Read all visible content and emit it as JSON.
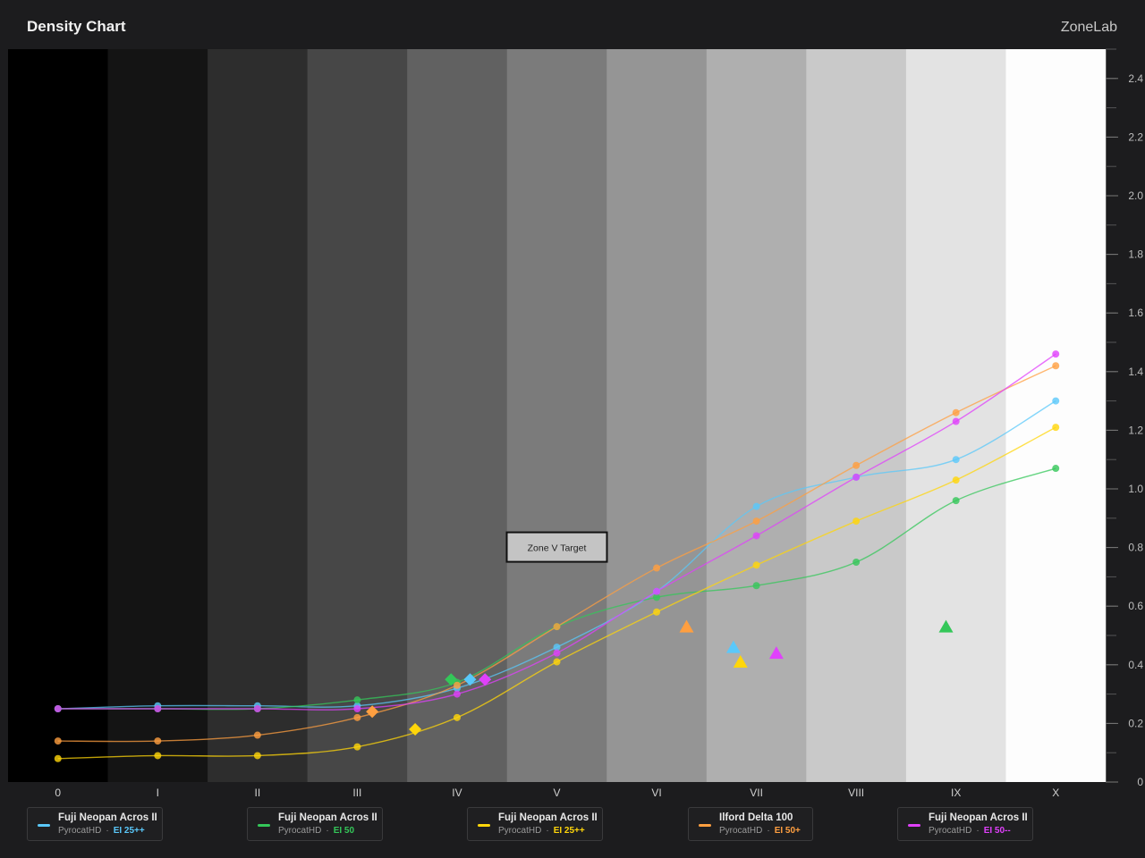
{
  "header": {
    "title": "Density Chart",
    "brand": "ZoneLab"
  },
  "annotation": {
    "label": "Zone V Target",
    "zone": 5,
    "density": 0.8
  },
  "chart_data": {
    "type": "line",
    "x_categories": [
      "0",
      "I",
      "II",
      "III",
      "IV",
      "V",
      "VI",
      "VII",
      "VIII",
      "IX",
      "X"
    ],
    "zone_shades": [
      "#000000",
      "#141414",
      "#2d2d2d",
      "#474747",
      "#616161",
      "#7b7b7b",
      "#959595",
      "#afafaf",
      "#c9c9c9",
      "#e3e3e3",
      "#fdfdfd"
    ],
    "ylim": [
      0,
      2.5
    ],
    "yticks": [
      0,
      0.2,
      0.4,
      0.6,
      0.8,
      1.0,
      1.2,
      1.4,
      1.6,
      1.8,
      2.0,
      2.2,
      2.4
    ],
    "ytick_labels": [
      "0",
      "0.2",
      "0.4",
      "0.6",
      "0.8",
      "1.0",
      "1.2",
      "1.4",
      "1.6",
      "1.8",
      "2.0",
      "2.2",
      "2.4"
    ],
    "series": [
      {
        "name": "Fuji Neopan Acros II",
        "developer": "PyrocatHD",
        "ei": "EI 25++",
        "color": "#5ac8fa",
        "values": [
          0.25,
          0.26,
          0.26,
          0.26,
          0.32,
          0.46,
          0.65,
          0.94,
          1.04,
          1.1,
          1.3
        ],
        "diamond": {
          "x": 4.13,
          "y": 0.35
        },
        "triangle": {
          "x": 6.77,
          "y": 0.46
        }
      },
      {
        "name": "Fuji Neopan Acros II",
        "developer": "PyrocatHD",
        "ei": "EI 50",
        "color": "#34c759",
        "values": [
          0.25,
          0.25,
          0.25,
          0.28,
          0.34,
          0.53,
          0.63,
          0.67,
          0.75,
          0.96,
          1.07
        ],
        "diamond": {
          "x": 3.94,
          "y": 0.35
        },
        "triangle": {
          "x": 8.9,
          "y": 0.53
        }
      },
      {
        "name": "Fuji Neopan Acros II",
        "developer": "PyrocatHD",
        "ei": "EI 25++",
        "color": "#ffd60a",
        "values": [
          0.08,
          0.09,
          0.09,
          0.12,
          0.22,
          0.41,
          0.58,
          0.74,
          0.89,
          1.03,
          1.21
        ],
        "diamond": {
          "x": 3.58,
          "y": 0.18
        },
        "triangle": {
          "x": 6.84,
          "y": 0.41
        }
      },
      {
        "name": "Ilford Delta 100",
        "developer": "PyrocatHD",
        "ei": "EI 50+",
        "color": "#ff9f40",
        "values": [
          0.14,
          0.14,
          0.16,
          0.22,
          0.33,
          0.53,
          0.73,
          0.89,
          1.08,
          1.26,
          1.42
        ],
        "diamond": {
          "x": 3.15,
          "y": 0.24
        },
        "triangle": {
          "x": 6.3,
          "y": 0.53
        }
      },
      {
        "name": "Fuji Neopan Acros II",
        "developer": "PyrocatHD",
        "ei": "EI 50--",
        "color": "#e040fb",
        "values": [
          0.25,
          0.25,
          0.25,
          0.25,
          0.3,
          0.44,
          0.65,
          0.84,
          1.04,
          1.23,
          1.46
        ],
        "diamond": {
          "x": 4.28,
          "y": 0.35
        },
        "triangle": {
          "x": 7.2,
          "y": 0.44
        }
      }
    ]
  }
}
